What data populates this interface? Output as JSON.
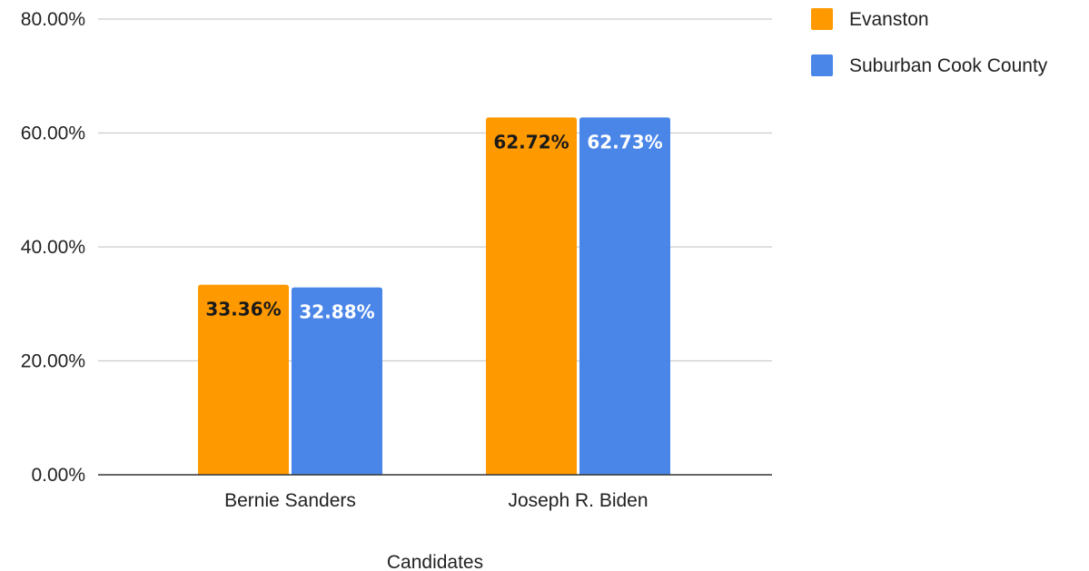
{
  "chart_data": {
    "type": "bar",
    "title": "",
    "xlabel": "Candidates",
    "ylabel": "",
    "categories": [
      "Bernie Sanders",
      "Joseph R. Biden"
    ],
    "series": [
      {
        "name": "Evanston",
        "color": "#FF9900",
        "label_color": "#1a1a1a",
        "values": [
          33.36,
          62.72
        ],
        "value_labels": [
          "33.36%",
          "62.72%"
        ]
      },
      {
        "name": "Suburban Cook County",
        "color": "#4A86E8",
        "label_color": "#ffffff",
        "values": [
          32.88,
          62.73
        ],
        "value_labels": [
          "32.88%",
          "62.73%"
        ]
      }
    ],
    "ylim": [
      0,
      80
    ],
    "yticks": [
      0,
      20,
      40,
      60,
      80
    ],
    "ytick_labels": [
      "0.00%",
      "20.00%",
      "40.00%",
      "60.00%",
      "80.00%"
    ],
    "grid": true,
    "legend_position": "top-right"
  }
}
